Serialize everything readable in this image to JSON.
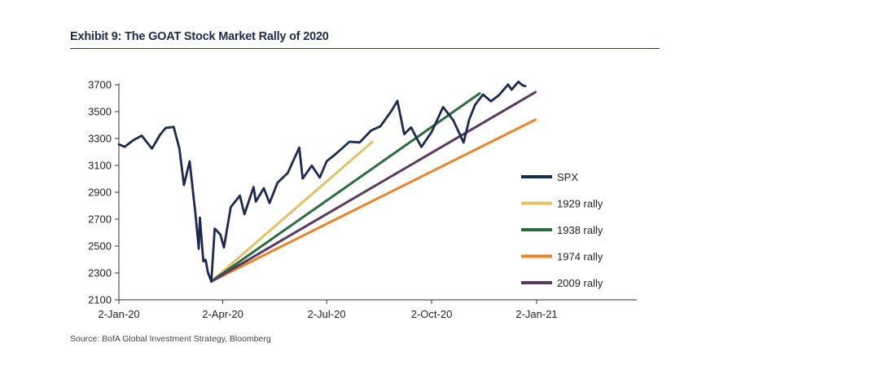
{
  "title": "Exhibit 9: The GOAT Stock Market Rally of 2020",
  "source": "Source: BofA Global Investment Strategy, Bloomberg",
  "chart_data": {
    "type": "line",
    "title": "Exhibit 9: The GOAT Stock Market Rally of 2020",
    "xlabel": "",
    "ylabel": "",
    "ylim": [
      2100,
      3700
    ],
    "yticks": [
      2100,
      2300,
      2500,
      2700,
      2900,
      3100,
      3300,
      3500,
      3700
    ],
    "xticks": [
      "2-Jan-20",
      "2-Apr-20",
      "2-Jul-20",
      "2-Oct-20",
      "2-Jan-21"
    ],
    "grid": false,
    "legend_position": "right",
    "series": [
      {
        "name": "SPX",
        "color": "#1c2a52",
        "points": [
          [
            "2020-01-02",
            3257
          ],
          [
            "2020-01-07",
            3238
          ],
          [
            "2020-01-15",
            3289
          ],
          [
            "2020-01-22",
            3321
          ],
          [
            "2020-01-31",
            3225
          ],
          [
            "2020-02-07",
            3327
          ],
          [
            "2020-02-12",
            3379
          ],
          [
            "2020-02-19",
            3386
          ],
          [
            "2020-02-24",
            3225
          ],
          [
            "2020-02-28",
            2954
          ],
          [
            "2020-03-04",
            3130
          ],
          [
            "2020-03-09",
            2746
          ],
          [
            "2020-03-12",
            2480
          ],
          [
            "2020-03-13",
            2711
          ],
          [
            "2020-03-16",
            2386
          ],
          [
            "2020-03-18",
            2398
          ],
          [
            "2020-03-20",
            2304
          ],
          [
            "2020-03-23",
            2237
          ],
          [
            "2020-03-26",
            2630
          ],
          [
            "2020-03-31",
            2585
          ],
          [
            "2020-04-03",
            2489
          ],
          [
            "2020-04-09",
            2790
          ],
          [
            "2020-04-17",
            2875
          ],
          [
            "2020-04-21",
            2737
          ],
          [
            "2020-04-29",
            2939
          ],
          [
            "2020-05-01",
            2831
          ],
          [
            "2020-05-08",
            2930
          ],
          [
            "2020-05-13",
            2820
          ],
          [
            "2020-05-20",
            2971
          ],
          [
            "2020-05-29",
            3044
          ],
          [
            "2020-06-08",
            3232
          ],
          [
            "2020-06-11",
            3002
          ],
          [
            "2020-06-19",
            3098
          ],
          [
            "2020-06-26",
            3009
          ],
          [
            "2020-07-02",
            3130
          ],
          [
            "2020-07-10",
            3185
          ],
          [
            "2020-07-22",
            3276
          ],
          [
            "2020-07-31",
            3271
          ],
          [
            "2020-08-10",
            3360
          ],
          [
            "2020-08-18",
            3390
          ],
          [
            "2020-08-28",
            3508
          ],
          [
            "2020-09-02",
            3580
          ],
          [
            "2020-09-08",
            3332
          ],
          [
            "2020-09-14",
            3383
          ],
          [
            "2020-09-23",
            3237
          ],
          [
            "2020-10-02",
            3348
          ],
          [
            "2020-10-12",
            3534
          ],
          [
            "2020-10-21",
            3435
          ],
          [
            "2020-10-30",
            3270
          ],
          [
            "2020-11-04",
            3443
          ],
          [
            "2020-11-09",
            3550
          ],
          [
            "2020-11-16",
            3627
          ],
          [
            "2020-11-23",
            3577
          ],
          [
            "2020-11-30",
            3622
          ],
          [
            "2020-12-08",
            3702
          ],
          [
            "2020-12-11",
            3663
          ],
          [
            "2020-12-17",
            3722
          ],
          [
            "2020-12-21",
            3694
          ],
          [
            "2020-12-23",
            3690
          ]
        ]
      },
      {
        "name": "1929 rally",
        "color": "#e3c06a",
        "points": [
          [
            "2020-03-23",
            2237
          ],
          [
            "2020-08-11",
            3275
          ]
        ]
      },
      {
        "name": "1938 rally",
        "color": "#2d6a3e",
        "points": [
          [
            "2020-03-23",
            2237
          ],
          [
            "2020-11-13",
            3635
          ]
        ]
      },
      {
        "name": "1974 rally",
        "color": "#e8852a",
        "points": [
          [
            "2020-03-23",
            2237
          ],
          [
            "2021-01-01",
            3440
          ]
        ]
      },
      {
        "name": "2009 rally",
        "color": "#5a3a5e",
        "points": [
          [
            "2020-03-23",
            2237
          ],
          [
            "2021-01-01",
            3645
          ]
        ]
      }
    ]
  }
}
